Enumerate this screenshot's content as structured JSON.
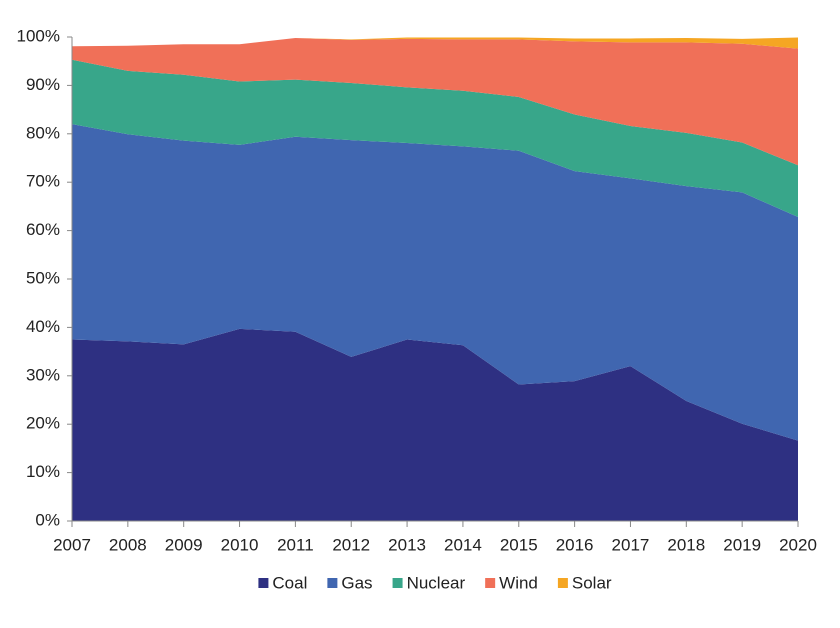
{
  "chart_data": {
    "type": "stacked_area",
    "categories": [
      "2007",
      "2008",
      "2009",
      "2010",
      "2011",
      "2012",
      "2013",
      "2014",
      "2015",
      "2016",
      "2017",
      "2018",
      "2019",
      "2020"
    ],
    "series": [
      {
        "name": "Coal",
        "color": "#2e3082",
        "values": [
          37.5,
          37.1,
          36.5,
          39.7,
          39.1,
          33.9,
          37.5,
          36.3,
          28.2,
          28.9,
          32.0,
          24.8,
          20.1,
          16.6
        ]
      },
      {
        "name": "Gas",
        "color": "#4066b0",
        "values": [
          44.5,
          42.8,
          42.1,
          38.0,
          40.3,
          44.8,
          40.6,
          41.1,
          48.3,
          43.4,
          38.8,
          44.4,
          47.8,
          46.2
        ]
      },
      {
        "name": "Nuclear",
        "color": "#38a68a",
        "values": [
          13.3,
          13.1,
          13.6,
          13.1,
          11.8,
          11.8,
          11.5,
          11.5,
          11.1,
          11.7,
          10.8,
          11.0,
          10.3,
          10.7
        ]
      },
      {
        "name": "Wind",
        "color": "#f07058",
        "values": [
          2.8,
          5.2,
          6.3,
          7.7,
          8.6,
          8.9,
          10.0,
          10.6,
          11.9,
          15.1,
          17.3,
          18.7,
          20.4,
          24.1
        ]
      },
      {
        "name": "Solar",
        "color": "#f5a623",
        "values": [
          0,
          0,
          0,
          0,
          0,
          0.1,
          0.3,
          0.4,
          0.4,
          0.6,
          0.8,
          0.9,
          1.0,
          2.3
        ]
      }
    ],
    "ylim": [
      0,
      100
    ],
    "yticks": [
      {
        "value": 0,
        "label": "0%"
      },
      {
        "value": 10,
        "label": "10%"
      },
      {
        "value": 20,
        "label": "20%"
      },
      {
        "value": 30,
        "label": "30%"
      },
      {
        "value": 40,
        "label": "40%"
      },
      {
        "value": 50,
        "label": "50%"
      },
      {
        "value": 60,
        "label": "60%"
      },
      {
        "value": 70,
        "label": "70%"
      },
      {
        "value": 80,
        "label": "80%"
      },
      {
        "value": 90,
        "label": "90%"
      },
      {
        "value": 100,
        "label": "100%"
      }
    ],
    "grid": false,
    "legend": "bottom"
  }
}
